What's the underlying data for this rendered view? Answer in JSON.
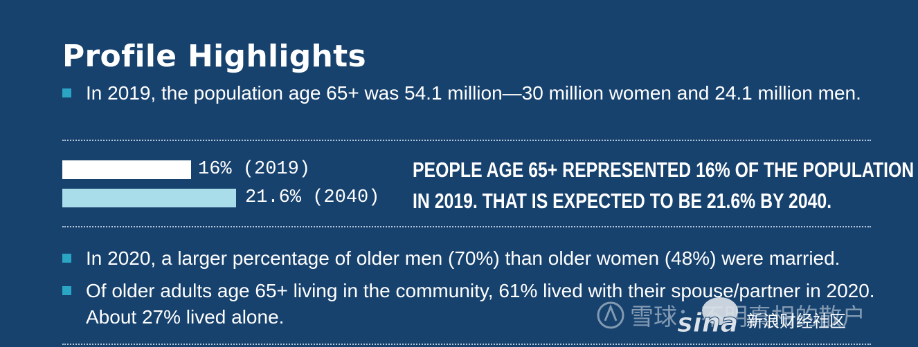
{
  "title": "Profile Highlights",
  "bullets_top": [
    "In 2019, the population age 65+ was 54.1 million—30 million women and 24.1 million men."
  ],
  "comparison": {
    "bars": [
      {
        "label": "16% (2019)",
        "value": 16,
        "year": "2019"
      },
      {
        "label": "21.6% (2040)",
        "value": 21.6,
        "year": "2040"
      }
    ],
    "callout_lines": [
      "PEOPLE AGE 65+ REPRESENTED 16% OF THE POPULATION",
      "IN 2019. THAT IS EXPECTED TO BE 21.6% BY 2040."
    ]
  },
  "bullets_bottom": [
    "In 2020, a larger percentage of older men (70%) than older women (48%) were married.",
    "Of older adults age 65+ living in the community, 61% lived with their spouse/partner in 2020. About 27% lived alone."
  ],
  "watermark": {
    "logo_text": "雪球：不明真相的散户",
    "brand": "sina",
    "caption": "新浪财经社区"
  },
  "colors": {
    "background": "#17426e",
    "bar_2019": "#ffffff",
    "bar_2040": "#a9dde9",
    "bullet_square": "#2aa6c4"
  }
}
